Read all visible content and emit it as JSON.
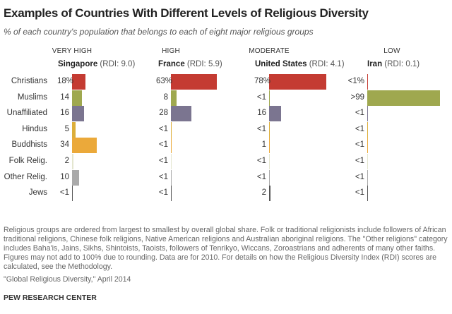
{
  "title": "Examples of Countries With Different Levels of Religious Diversity",
  "subtitle": "% of each country's population that belongs to each of eight major religious groups",
  "chart_data": {
    "type": "bar",
    "orientation": "horizontal",
    "title": "Examples of Countries With Different Levels of Religious Diversity",
    "categories": [
      "Christians",
      "Muslims",
      "Unaffiliated",
      "Hindus",
      "Buddhists",
      "Folk Relig.",
      "Other Relig.",
      "Jews"
    ],
    "colors": [
      "#c43b32",
      "#9fa84f",
      "#7b7590",
      "#dcae3a",
      "#eba93a",
      "#e4e6cf",
      "#aaaaaa",
      "#555555"
    ],
    "xlim": [
      0,
      100
    ],
    "panels": [
      {
        "level": "VERY HIGH",
        "country": "Singapore",
        "rdi": "(RDI: 9.0)",
        "labels": [
          "18%",
          "14",
          "16",
          "5",
          "34",
          "2",
          "10",
          "<1"
        ],
        "values": [
          18,
          14,
          16,
          5,
          34,
          2,
          10,
          0.5
        ]
      },
      {
        "level": "HIGH",
        "country": "France",
        "rdi": "(RDI: 5.9)",
        "labels": [
          "63%",
          "8",
          "28",
          "<1",
          "<1",
          "<1",
          "<1",
          "<1"
        ],
        "values": [
          63,
          8,
          28,
          0.5,
          0.5,
          0.5,
          0.5,
          0.5
        ]
      },
      {
        "level": "MODERATE",
        "country": "United States",
        "rdi": "(RDI: 4.1)",
        "labels": [
          "78%",
          "<1",
          "16",
          "<1",
          "1",
          "<1",
          "<1",
          "2"
        ],
        "values": [
          78,
          0.5,
          16,
          0.5,
          1,
          0.5,
          0.5,
          2
        ]
      },
      {
        "level": "LOW",
        "country": "Iran",
        "rdi": "(RDI: 0.1)",
        "labels": [
          "<1%",
          ">99",
          "<1",
          "<1",
          "<1",
          "<1",
          "<1",
          "<1"
        ],
        "values": [
          0.5,
          99.5,
          0.5,
          0.5,
          0.5,
          0.5,
          0.5,
          0.5
        ]
      }
    ]
  },
  "footnote": "Religious groups are ordered from largest to smallest by overall global share. Folk or traditional religionists include followers of African traditional religions, Chinese folk religions, Native American religions and Australian aboriginal religions. The \"Other religions\" category includes Baha'is, Jains, Sikhs, Shintoists, Taoists, followers of Tenrikyo, Wiccans, Zoroastrians and adherents of many other faiths. Figures may not add to 100% due to rounding. Data are for 2010. For details on how the Religious Diversity Index (RDI) scores are calculated, see the Methodology.",
  "source": "\"Global Religious Diversity,\" April 2014",
  "logo": "PEW RESEARCH CENTER"
}
